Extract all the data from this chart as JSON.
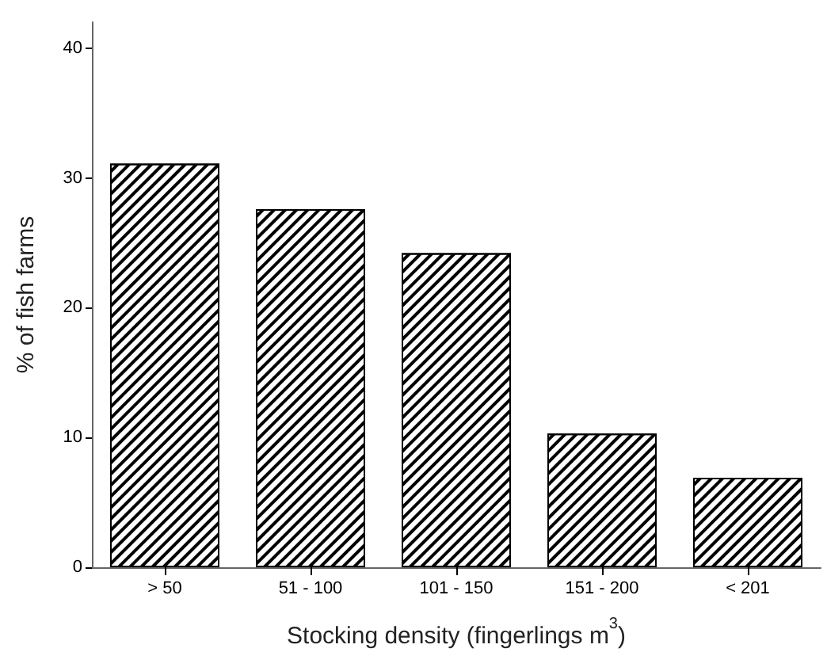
{
  "chart_data": {
    "type": "bar",
    "xlabel": "Stocking density (fingerlings m$^{3}$)",
    "ylabel": "% of fish farms",
    "categories": [
      "> 50",
      "51 - 100",
      "101 - 150",
      "151 - 200",
      "< 201"
    ],
    "values": [
      31.1,
      27.6,
      24.2,
      10.3,
      6.9
    ],
    "color": "#ffffff",
    "ylim": [
      0,
      42
    ],
    "yticks": [
      0,
      10,
      20,
      30,
      40
    ],
    "grid": false
  }
}
